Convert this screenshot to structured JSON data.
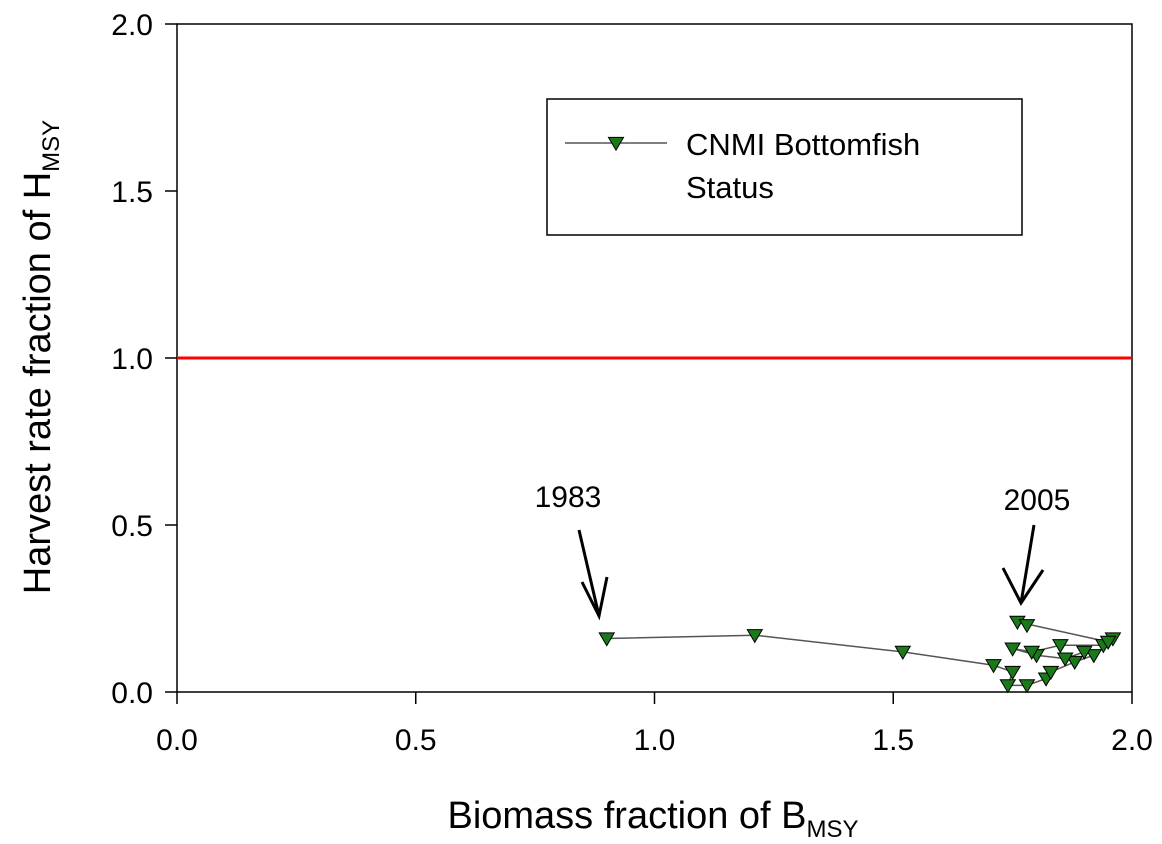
{
  "chart_data": {
    "type": "scatter",
    "title": "",
    "xlabel": {
      "main": "Biomass fraction of B",
      "sub": "MSY"
    },
    "ylabel": {
      "main": "Harvest rate fraction of H",
      "sub": "MSY"
    },
    "xlim": [
      0.0,
      2.0
    ],
    "ylim": [
      0.0,
      2.0
    ],
    "xticks": [
      "0.0",
      "0.5",
      "1.0",
      "1.5",
      "2.0"
    ],
    "yticks": [
      "0.0",
      "0.5",
      "1.0",
      "1.5",
      "2.0"
    ],
    "grid": false,
    "legend": {
      "position": "top-right",
      "label_line1": "CNMI Bottomfish",
      "label_line2": "Status"
    },
    "reference_line": {
      "y": 1.0,
      "color": "#ff0000"
    },
    "marker_color": "#1a7a1a",
    "series": [
      {
        "name": "CNMI Bottomfish Status",
        "points": [
          [
            0.9,
            0.16
          ],
          [
            1.21,
            0.17
          ],
          [
            1.52,
            0.12
          ],
          [
            1.71,
            0.08
          ],
          [
            1.75,
            0.06
          ],
          [
            1.74,
            0.02
          ],
          [
            1.78,
            0.02
          ],
          [
            1.82,
            0.04
          ],
          [
            1.83,
            0.06
          ],
          [
            1.88,
            0.09
          ],
          [
            1.92,
            0.11
          ],
          [
            1.9,
            0.12
          ],
          [
            1.86,
            0.1
          ],
          [
            1.8,
            0.11
          ],
          [
            1.75,
            0.13
          ],
          [
            1.79,
            0.12
          ],
          [
            1.85,
            0.14
          ],
          [
            1.94,
            0.14
          ],
          [
            1.96,
            0.16
          ],
          [
            1.95,
            0.15
          ],
          [
            1.76,
            0.21
          ],
          [
            1.78,
            0.2
          ]
        ]
      }
    ],
    "annotations": [
      {
        "text": "1983",
        "x": 0.9,
        "y": 0.16
      },
      {
        "text": "2005",
        "x": 1.78,
        "y": 0.2
      }
    ]
  }
}
